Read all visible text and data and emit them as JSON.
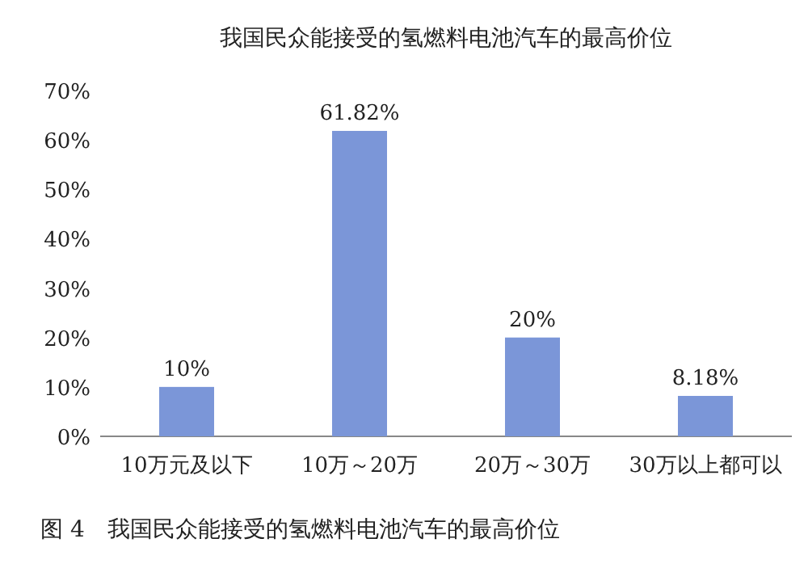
{
  "chart_data": {
    "type": "bar",
    "title": "我国民众能接受的氢燃料电池汽车的最高价位",
    "categories": [
      "10万元及以下",
      "10万～20万",
      "20万～30万",
      "30万以上都可以"
    ],
    "values": [
      10,
      61.82,
      20,
      8.18
    ],
    "value_labels": [
      "10%",
      "61.82%",
      "20%",
      "8.18%"
    ],
    "color": "#7b96d8",
    "ylim": [
      0,
      70
    ],
    "yticks": [
      {
        "value": 0,
        "label": "0%"
      },
      {
        "value": 10,
        "label": "10%"
      },
      {
        "value": 20,
        "label": "20%"
      },
      {
        "value": 30,
        "label": "30%"
      },
      {
        "value": 40,
        "label": "40%"
      },
      {
        "value": 50,
        "label": "50%"
      },
      {
        "value": 60,
        "label": "60%"
      },
      {
        "value": 70,
        "label": "70%"
      }
    ],
    "annotations": [
      "图 4　我国民众能接受的氢燃料电池汽车的最高价位"
    ]
  }
}
